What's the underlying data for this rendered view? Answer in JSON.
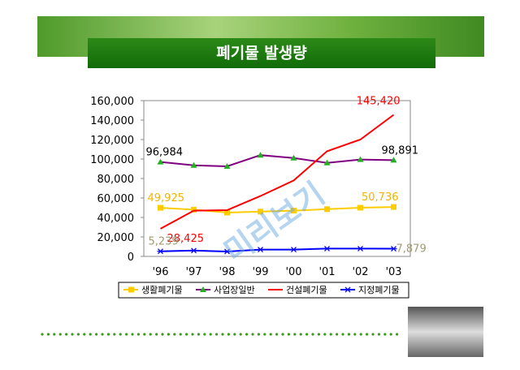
{
  "chart_data": {
    "type": "line",
    "title": "폐기물 발생량",
    "watermark": "미리보기",
    "categories": [
      "'96",
      "'97",
      "'98",
      "'99",
      "'00",
      "'01",
      "'02",
      "'03"
    ],
    "ylim": [
      0,
      160000
    ],
    "yticks": [
      0,
      {
        "value": 20000,
        "label": "20,000"
      },
      {
        "value": 40000,
        "label": "40,000"
      },
      {
        "value": 60000,
        "label": "60,000"
      },
      {
        "value": 80000,
        "label": "80,000"
      },
      {
        "value": 100000,
        "label": "100,000"
      },
      {
        "value": 120000,
        "label": "120,000"
      },
      {
        "value": 140000,
        "label": "140,000"
      },
      {
        "value": 160000,
        "label": "160,000"
      }
    ],
    "series": [
      {
        "name": "생활폐기물",
        "color": "#ffcc00",
        "marker": "square",
        "label_color": "#f0b400",
        "values": [
          49925,
          48000,
          45000,
          46000,
          47000,
          48500,
          50000,
          50736
        ],
        "value_labels": [
          "49,925",
          null,
          null,
          null,
          null,
          null,
          null,
          "50,736"
        ]
      },
      {
        "name": "사업장일반",
        "color": "#800080",
        "marker": "triangle",
        "label_color": "#000000",
        "values": [
          96984,
          93500,
          92500,
          104000,
          101000,
          96000,
          99500,
          98891
        ],
        "value_labels": [
          "96,984",
          null,
          null,
          null,
          null,
          null,
          null,
          "98,891"
        ]
      },
      {
        "name": "건설폐기물",
        "color": "#ff0000",
        "marker": "none",
        "label_color": "#ff0000",
        "values": [
          28425,
          47000,
          47500,
          62000,
          78000,
          108000,
          120000,
          145420
        ],
        "value_labels": [
          "28,425",
          null,
          null,
          null,
          null,
          null,
          null,
          "145,420"
        ]
      },
      {
        "name": "지정폐기물",
        "color": "#0000ff",
        "marker": "asterisk",
        "label_color": "#a09a70",
        "values": [
          5239,
          6000,
          5000,
          7000,
          7000,
          8000,
          8000,
          7879
        ],
        "value_labels": [
          "5,239",
          null,
          null,
          null,
          null,
          null,
          null,
          "7,879"
        ]
      }
    ]
  }
}
